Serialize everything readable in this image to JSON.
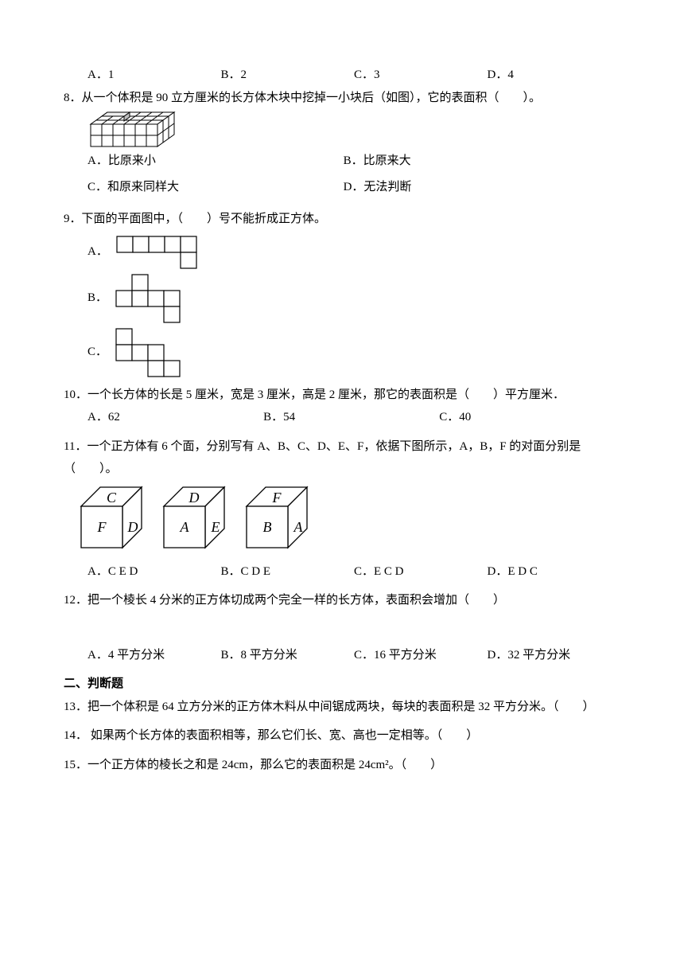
{
  "q7options": {
    "a": "A．1",
    "b": "B．2",
    "c": "C．3",
    "d": "D．4"
  },
  "q8": {
    "text": "8．从一个体积是 90 立方厘米的长方体木块中挖掉一小块后（如图），它的表面积（　　）。",
    "a": "A．比原来小",
    "b": "B．比原来大",
    "c": "C．和原来同样大",
    "d": "D．无法判断",
    "diagram": {
      "cols": 6,
      "rows_front": 2,
      "depth": 3,
      "outline": "#000000",
      "fill_top": "#ffffff",
      "fill_side": "#cfcfcf"
    }
  },
  "q9": {
    "text": "9．下面的平面图中，（　　）号不能折成正方体。",
    "a": "A．",
    "b": "B．",
    "c": "C．",
    "netA": {
      "sq": 20,
      "layout": [
        [
          0,
          0
        ],
        [
          1,
          0
        ],
        [
          2,
          0
        ],
        [
          3,
          0
        ],
        [
          4,
          0
        ],
        [
          4,
          1
        ]
      ]
    },
    "netB": {
      "sq": 20,
      "layout": [
        [
          1,
          0
        ],
        [
          0,
          1
        ],
        [
          1,
          1
        ],
        [
          2,
          1
        ],
        [
          3,
          1
        ],
        [
          3,
          2
        ]
      ]
    },
    "netC": {
      "sq": 20,
      "layout": [
        [
          0,
          0
        ],
        [
          0,
          1
        ],
        [
          1,
          1
        ],
        [
          2,
          1
        ],
        [
          2,
          2
        ],
        [
          3,
          2
        ]
      ]
    }
  },
  "q10": {
    "text": "10．一个长方体的长是 5 厘米，宽是 3 厘米，高是 2 厘米，那它的表面积是（　　）平方厘米．",
    "a": "A．62",
    "b": "B．54",
    "c": "C．40"
  },
  "q11": {
    "text": "11．一个正方体有 6 个面，分别写有 A、B、C、D、E、F，依据下图所示，A，B，F 的对面分别是（　　）。",
    "a": "A．C E D",
    "b": "B．C D E",
    "c": "C．E C D",
    "d": "D．E D C",
    "cubes": [
      {
        "top": "C",
        "front": "F",
        "right": "D"
      },
      {
        "top": "D",
        "front": "A",
        "right": "E"
      },
      {
        "top": "F",
        "front": "B",
        "right": "A"
      }
    ],
    "cube_style": {
      "size": 52,
      "depth": 24,
      "stroke": "#000000",
      "fill": "#ffffff",
      "font": "italic 18px serif"
    }
  },
  "q12": {
    "text": "12．把一个棱长 4 分米的正方体切成两个完全一样的长方体，表面积会增加（　　）",
    "a": "A．4 平方分米",
    "b": "B．8 平方分米",
    "c": "C．16 平方分米",
    "d": "D．32 平方分米"
  },
  "section2": "二、判断题",
  "q13": "13．把一个体积是 64 立方分米的正方体木料从中间锯成两块，每块的表面积是 32 平方分米。（　　）",
  "q14": "14． 如果两个长方体的表面积相等，那么它们长、宽、高也一定相等。（　　）",
  "q15": "15．一个正方体的棱长之和是 24cm，那么它的表面积是 24cm²。（　　）",
  "net_style": {
    "stroke": "#000000",
    "fill": "#ffffff",
    "sq": 20
  }
}
